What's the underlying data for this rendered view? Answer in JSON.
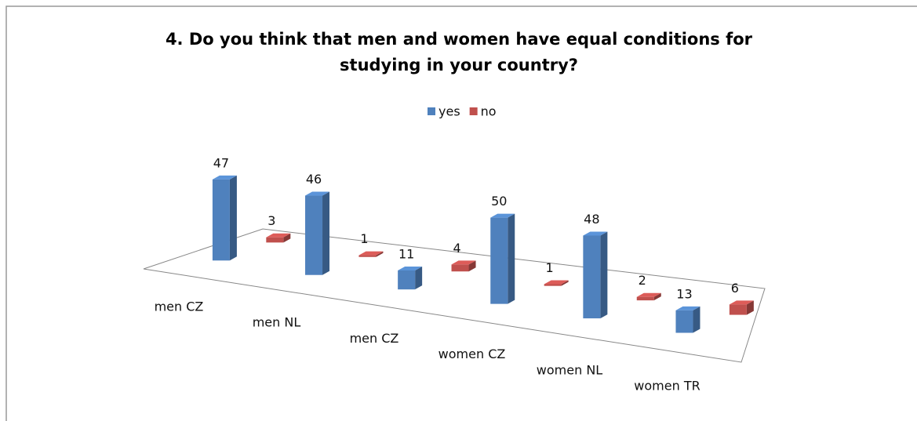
{
  "chart_data": {
    "type": "bar3d",
    "title": "4. Do you think that men and women have equal conditions for studying in your country?",
    "categories": [
      "men CZ",
      "men NL",
      "men CZ",
      "women CZ",
      "women NL",
      "women TR"
    ],
    "series": [
      {
        "name": "yes",
        "color": "#4f81bd",
        "values": [
          47,
          46,
          11,
          50,
          48,
          13
        ]
      },
      {
        "name": "no",
        "color": "#c0504d",
        "values": [
          3,
          1,
          4,
          1,
          2,
          6
        ]
      }
    ],
    "legend": "top"
  }
}
